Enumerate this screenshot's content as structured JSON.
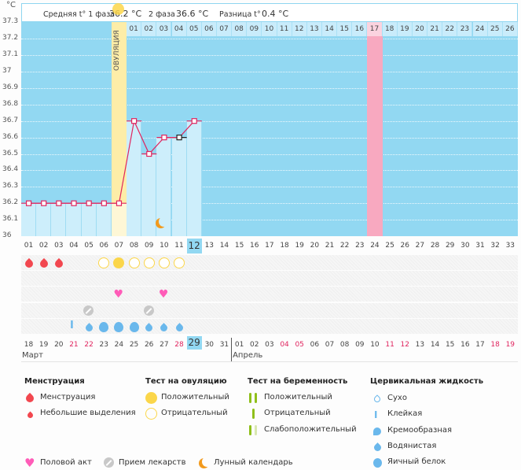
{
  "unit_label": "°C",
  "header": {
    "phase1_label": "Средняя t° 1 фаза",
    "phase1_value": "36.2 °C",
    "phase2_label": "2 фаза",
    "phase2_value": "36.6 °C",
    "diff_label": "Разница t°",
    "diff_value": "0.4 °C"
  },
  "ovulation_label": "ОВУЛЯЦИЯ",
  "colors": {
    "plot_bg": "#92d8f2",
    "bar_fill": "#cdeefb",
    "ovulation": "#fdeda8",
    "ovulation_light": "#fef7d6",
    "highlight_pink": "#f8a9c0",
    "line": "#e0245e",
    "weekend": "#e0245e",
    "mens": "#f2474f",
    "ov_test": "#fbd64a",
    "heart": "#ff5cb8",
    "pill": "#c8c8c8",
    "moon": "#f29a1d",
    "drop": "#6ab8ec",
    "preg_test": "#8fbf1a",
    "preg_test_light": "#d9e8b0"
  },
  "chart_data": {
    "type": "line",
    "title": "",
    "ylabel": "°C",
    "ylim": [
      36.0,
      37.3
    ],
    "yticks": [
      "37.3",
      "37.2",
      "37.1",
      "37",
      "36.9",
      "36.8",
      "36.7",
      "36.6",
      "36.5",
      "36.4",
      "36.3",
      "36.2",
      "36.1",
      "36"
    ],
    "cycle_days": [
      "01",
      "02",
      "03",
      "04",
      "05",
      "06",
      "07",
      "08",
      "09",
      "10",
      "11",
      "12",
      "13",
      "14",
      "15",
      "16",
      "17",
      "18",
      "19",
      "20",
      "21",
      "22",
      "23",
      "24",
      "25",
      "26",
      "27",
      "28",
      "29",
      "30",
      "31",
      "32",
      "33"
    ],
    "temperatures": [
      36.2,
      36.2,
      36.2,
      36.2,
      36.2,
      36.2,
      36.2,
      36.7,
      36.5,
      36.6,
      36.6,
      36.7
    ],
    "marker_special_day": 11,
    "ovulation_day": 7,
    "highlight_day": 24,
    "today_day": 12,
    "post_ovulation_days": [
      "01",
      "02",
      "03",
      "04",
      "05",
      "06",
      "07",
      "08",
      "09",
      "10",
      "11",
      "12",
      "13",
      "14",
      "15",
      "16",
      "17",
      "18",
      "19",
      "20",
      "21",
      "22",
      "23",
      "24",
      "25",
      "26"
    ],
    "dates": [
      "18",
      "19",
      "20",
      "21",
      "22",
      "23",
      "24",
      "25",
      "26",
      "27",
      "28",
      "29",
      "30",
      "31",
      "01",
      "02",
      "03",
      "04",
      "05",
      "06",
      "07",
      "08",
      "09",
      "10",
      "11",
      "12",
      "13",
      "14",
      "15",
      "16",
      "17",
      "18",
      "19"
    ],
    "weekend_dates_idx": [
      3,
      4,
      10,
      17,
      18,
      24,
      25,
      31,
      32
    ],
    "today_date_idx": 11,
    "months": [
      {
        "label": "Март",
        "start_idx": 0
      },
      {
        "label": "Апрель",
        "start_idx": 14
      }
    ],
    "symbols": {
      "menstruation": [
        1,
        2,
        3
      ],
      "ovulation_test_positive": [
        7
      ],
      "ovulation_test_negative": [
        6,
        8,
        9,
        10,
        11
      ],
      "sex": [
        7,
        10
      ],
      "pill": [
        5,
        9
      ],
      "moon": [
        10
      ],
      "cervical_sticky": [
        4
      ],
      "cervical_watery": [
        5,
        9,
        10,
        11
      ],
      "cervical_eggwhite": [
        6,
        7,
        8
      ]
    }
  },
  "legend": {
    "menstruation": {
      "title": "Менструация",
      "items": [
        "Менструация",
        "Небольшие выделения"
      ]
    },
    "ov_test": {
      "title": "Тест на овуляцию",
      "items": [
        "Положительный",
        "Отрицательный"
      ]
    },
    "preg_test": {
      "title": "Тест на беременность",
      "items": [
        "Положительный",
        "Отрицательный",
        "Слабоположительный"
      ]
    },
    "cervical": {
      "title": "Цервикальная жидкость",
      "items": [
        "Сухо",
        "Клейкая",
        "Кремообразная",
        "Водянистая",
        "Яичный белок"
      ]
    },
    "misc": [
      "Половой акт",
      "Прием лекарств",
      "Лунный календарь"
    ]
  }
}
